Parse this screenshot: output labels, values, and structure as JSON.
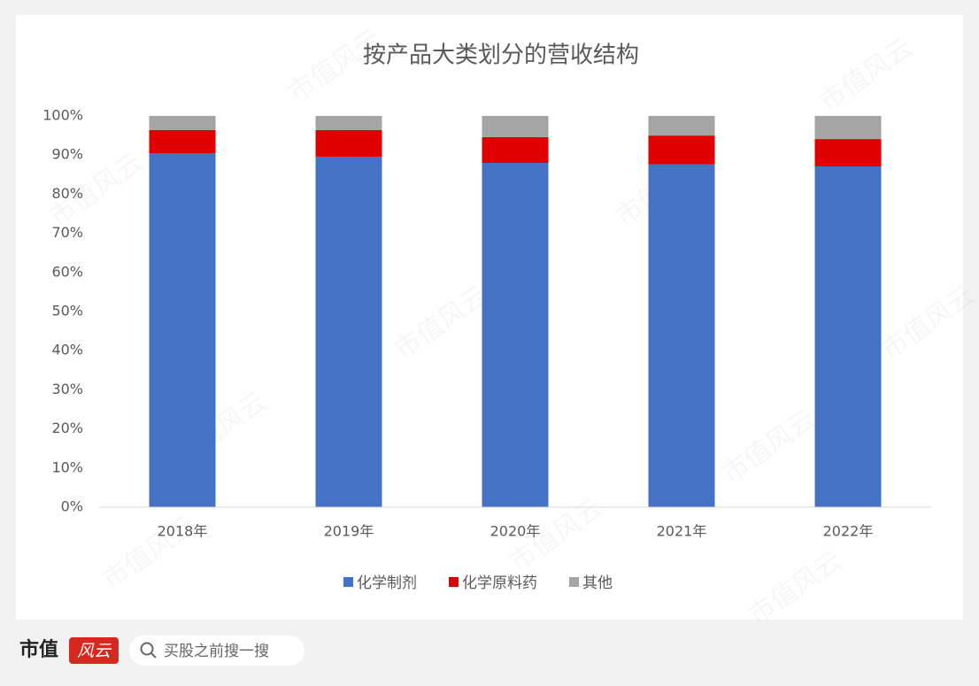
{
  "chart_data": {
    "type": "stacked_bar",
    "title": "按产品大类划分的营收结构",
    "categories": [
      "2018年",
      "2019年",
      "2020年",
      "2021年",
      "2022年"
    ],
    "series": [
      {
        "name": "化学制剂",
        "color": "#4472c4",
        "values": [
          90.5,
          89.6,
          88.0,
          87.6,
          87.1
        ]
      },
      {
        "name": "化学原料药",
        "color": "#e00000",
        "values": [
          5.9,
          6.8,
          6.6,
          7.4,
          7.0
        ]
      },
      {
        "name": "其他",
        "color": "#a5a5a5",
        "values": [
          3.6,
          3.6,
          5.4,
          5.0,
          5.9
        ]
      }
    ],
    "ylim": [
      0,
      100
    ],
    "yticks": [
      {
        "value": 0,
        "label": "0%"
      },
      {
        "value": 10,
        "label": "10%"
      },
      {
        "value": 20,
        "label": "20%"
      },
      {
        "value": 30,
        "label": "30%"
      },
      {
        "value": 40,
        "label": "40%"
      },
      {
        "value": 50,
        "label": "50%"
      },
      {
        "value": 60,
        "label": "60%"
      },
      {
        "value": 70,
        "label": "70%"
      },
      {
        "value": 80,
        "label": "80%"
      },
      {
        "value": 90,
        "label": "90%"
      },
      {
        "value": 100,
        "label": "100%"
      }
    ],
    "grid": false,
    "legend": "bottom"
  },
  "footer": {
    "brand": "市值",
    "brand_stamp": "风云",
    "search_placeholder": "买股之前搜一搜"
  },
  "watermark": "市值风云"
}
